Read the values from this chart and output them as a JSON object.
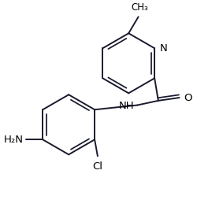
{
  "figsize": [
    2.5,
    2.54
  ],
  "dpi": 100,
  "bg_color": "#ffffff",
  "bond_color": "#1a1a2e",
  "text_color": "#000000",
  "lw": 1.4,
  "fs": 9.5,
  "atoms": {
    "N": "N",
    "NH": "NH",
    "O": "O",
    "Cl": "Cl",
    "H2N": "H₂N",
    "Me": "CH₃"
  },
  "xlim": [
    0.0,
    2.5
  ],
  "ylim": [
    0.0,
    2.6
  ]
}
